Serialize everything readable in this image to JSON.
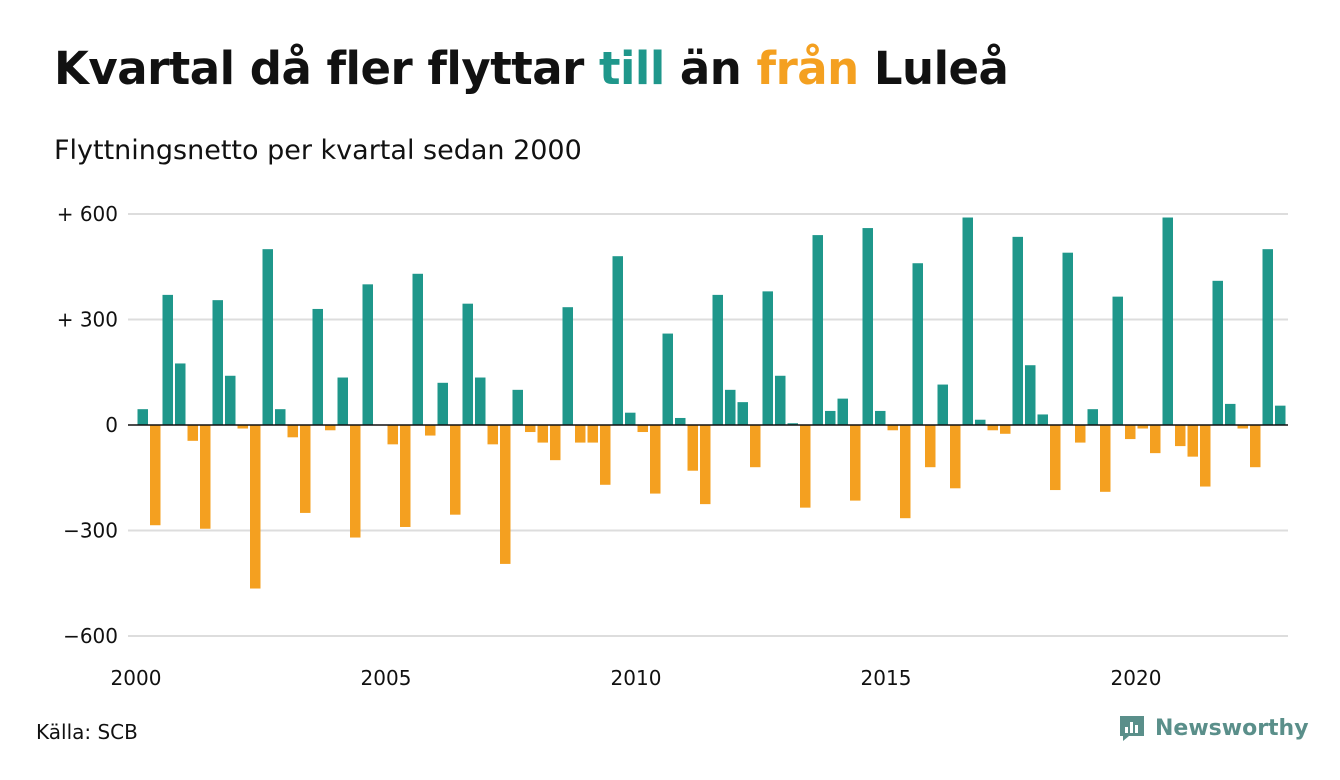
{
  "title": {
    "part1": "Kvartal då fler flyttar ",
    "word_in": "till",
    "part2": " än ",
    "word_out": "från",
    "part3": " Luleå"
  },
  "subtitle": "Flyttningsnetto per kvartal sedan 2000",
  "source": "Källa: SCB",
  "brand": "Newsworthy",
  "colors": {
    "positive": "#1f978b",
    "negative": "#f4a020",
    "grid": "#dddddd",
    "axis": "#111111",
    "brand": "#5a8f8a"
  },
  "chart_data": {
    "type": "bar",
    "start_year": 2000,
    "quarters_per_year": 4,
    "ylim": [
      -600,
      600
    ],
    "yticks": [
      600,
      300,
      0,
      -300,
      -600
    ],
    "ytick_labels": [
      "+ 600",
      "+ 300",
      "0",
      "−300",
      "−600"
    ],
    "xticks": [
      "2000",
      "2005",
      "2010",
      "2015",
      "2020"
    ],
    "values": [
      45,
      -285,
      370,
      175,
      -45,
      -295,
      355,
      140,
      -10,
      -465,
      500,
      45,
      -35,
      -250,
      330,
      -15,
      135,
      -320,
      400,
      0,
      -55,
      -290,
      430,
      -30,
      120,
      -255,
      345,
      135,
      -55,
      -395,
      100,
      -20,
      -50,
      -100,
      335,
      -50,
      -50,
      -170,
      480,
      35,
      -20,
      -195,
      260,
      20,
      -130,
      -225,
      370,
      100,
      65,
      -120,
      380,
      140,
      5,
      -235,
      540,
      40,
      75,
      -215,
      560,
      40,
      -15,
      -265,
      460,
      -120,
      115,
      -180,
      590,
      15,
      -15,
      -25,
      535,
      170,
      30,
      -185,
      490,
      -50,
      45,
      -190,
      365,
      -40,
      -10,
      -80,
      590,
      -60,
      -90,
      -175,
      410,
      60,
      -10,
      -120,
      500,
      55
    ]
  }
}
